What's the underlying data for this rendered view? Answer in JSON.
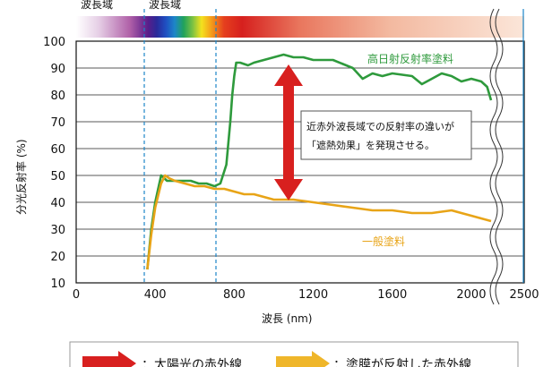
{
  "chart_data": {
    "type": "line",
    "xlabel": "波長 (nm)",
    "ylabel": "分光反射率 (%)",
    "xlim": [
      0,
      2500
    ],
    "ylim": [
      10,
      100
    ],
    "x_ticks": [
      0,
      400,
      800,
      1200,
      1600,
      2000,
      2500
    ],
    "y_ticks": [
      10,
      20,
      30,
      40,
      50,
      60,
      70,
      80,
      90,
      100
    ],
    "grid": "horizontal",
    "axis_break": "between 2100 and 2500",
    "wavelength_band_labels": [
      "波長域",
      "波長域"
    ],
    "series": [
      {
        "name": "高日射反射率塗料",
        "color": "#2e9a3c",
        "x": [
          360,
          380,
          400,
          430,
          460,
          480,
          500,
          540,
          580,
          620,
          660,
          700,
          730,
          760,
          780,
          790,
          800,
          810,
          830,
          870,
          900,
          950,
          1000,
          1050,
          1100,
          1150,
          1200,
          1300,
          1400,
          1450,
          1500,
          1550,
          1600,
          1700,
          1750,
          1800,
          1850,
          1900,
          1950,
          2000,
          2050,
          2080,
          2100
        ],
        "y": [
          15,
          30,
          40,
          50,
          48,
          48,
          48,
          48,
          48,
          47,
          47,
          46,
          47,
          54,
          70,
          80,
          87,
          92,
          92,
          91,
          92,
          93,
          94,
          95,
          94,
          94,
          93,
          93,
          90,
          86,
          88,
          87,
          88,
          87,
          84,
          86,
          88,
          87,
          85,
          86,
          85,
          83,
          78
        ]
      },
      {
        "name": "一般塗料",
        "color": "#e8a417",
        "x": [
          360,
          380,
          400,
          430,
          450,
          470,
          500,
          550,
          600,
          650,
          700,
          750,
          800,
          850,
          900,
          1000,
          1100,
          1200,
          1300,
          1400,
          1500,
          1600,
          1700,
          1800,
          1900,
          1950,
          2000,
          2050,
          2100
        ],
        "y": [
          15,
          28,
          38,
          47,
          50,
          49,
          48,
          47,
          46,
          46,
          45,
          45,
          44,
          43,
          43,
          41,
          41,
          40,
          39,
          38,
          37,
          37,
          36,
          36,
          37,
          36,
          35,
          34,
          33
        ]
      }
    ],
    "annotation": {
      "lines": [
        "近赤外波長域での反射率の違いが",
        "「遮熱効果」を発現させる。"
      ]
    },
    "legend": {
      "items": [
        {
          "color": "#d8201f",
          "label": "：太陽光の赤外線"
        },
        {
          "color": "#efb62a",
          "label": "：塗膜が反射した赤外線"
        }
      ]
    }
  }
}
